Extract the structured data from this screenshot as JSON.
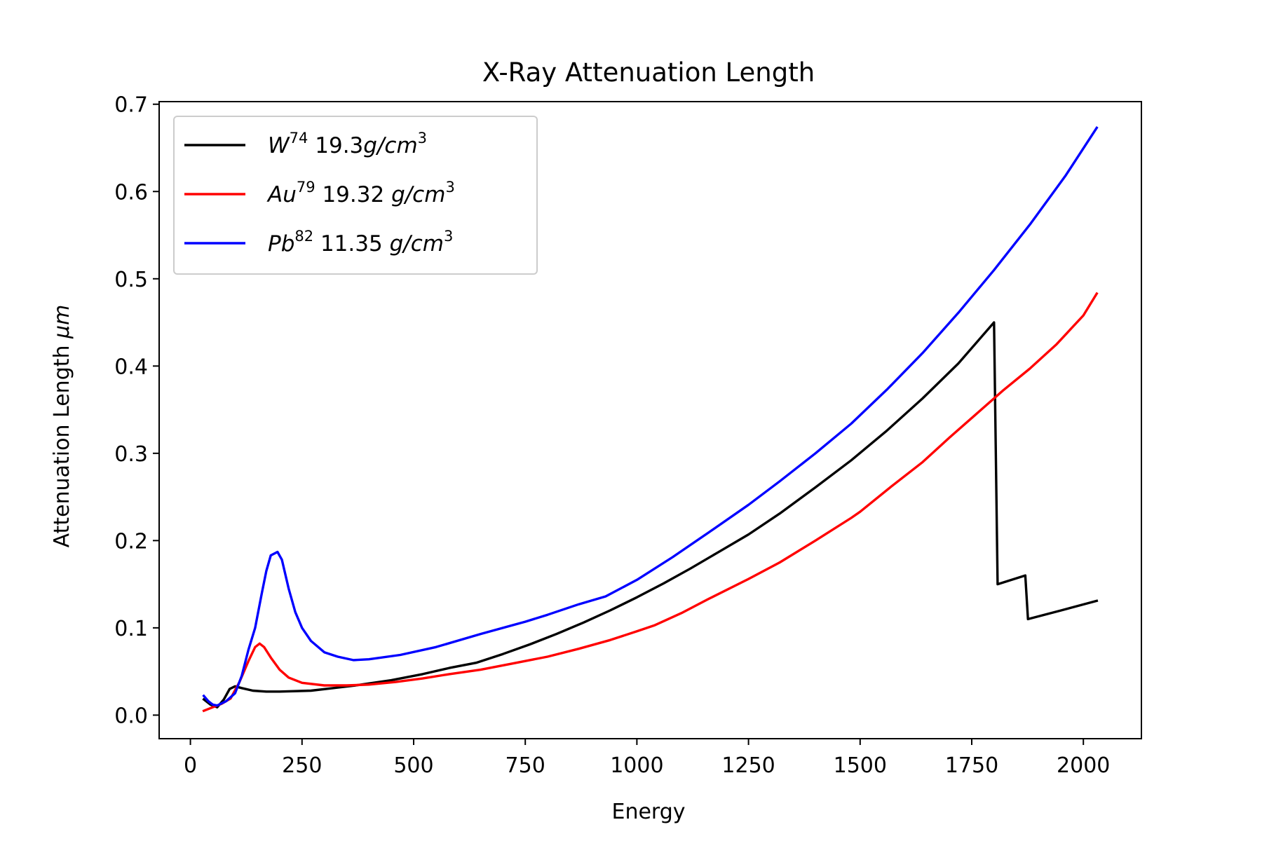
{
  "chart_data": {
    "type": "line",
    "title": "X-Ray Attenuation Length",
    "xlabel": "Energy",
    "ylabel": "Attenuation Length",
    "ylabel_unit": "μm",
    "xlim": [
      -70,
      2130
    ],
    "ylim": [
      -0.027,
      0.703
    ],
    "x_ticks": [
      0,
      250,
      500,
      750,
      1000,
      1250,
      1500,
      1750,
      2000
    ],
    "x_tick_labels": [
      "0",
      "250",
      "500",
      "750",
      "1000",
      "1250",
      "1500",
      "1750",
      "2000"
    ],
    "y_ticks": [
      0.0,
      0.1,
      0.2,
      0.3,
      0.4,
      0.5,
      0.6,
      0.7
    ],
    "y_tick_labels": [
      "0.0",
      "0.1",
      "0.2",
      "0.3",
      "0.4",
      "0.5",
      "0.6",
      "0.7"
    ],
    "grid": false,
    "legend_position": "top-left",
    "series": [
      {
        "name": "W74 19.3g/cm3",
        "legend": {
          "symbol": "W",
          "z": "74",
          "density": "19.3",
          "unit_base": "g/cm",
          "unit_exp": "3",
          "space": false
        },
        "color": "#000000",
        "points": [
          [
            30,
            0.018
          ],
          [
            45,
            0.012
          ],
          [
            60,
            0.009
          ],
          [
            75,
            0.018
          ],
          [
            88,
            0.03
          ],
          [
            100,
            0.033
          ],
          [
            115,
            0.031
          ],
          [
            140,
            0.028
          ],
          [
            170,
            0.027
          ],
          [
            200,
            0.027
          ],
          [
            270,
            0.028
          ],
          [
            320,
            0.031
          ],
          [
            370,
            0.034
          ],
          [
            450,
            0.04
          ],
          [
            520,
            0.047
          ],
          [
            580,
            0.054
          ],
          [
            640,
            0.06
          ],
          [
            700,
            0.07
          ],
          [
            760,
            0.081
          ],
          [
            820,
            0.093
          ],
          [
            880,
            0.106
          ],
          [
            940,
            0.12
          ],
          [
            1000,
            0.135
          ],
          [
            1060,
            0.151
          ],
          [
            1120,
            0.168
          ],
          [
            1180,
            0.186
          ],
          [
            1250,
            0.207
          ],
          [
            1320,
            0.231
          ],
          [
            1400,
            0.261
          ],
          [
            1480,
            0.292
          ],
          [
            1560,
            0.326
          ],
          [
            1640,
            0.363
          ],
          [
            1720,
            0.403
          ],
          [
            1800,
            0.45
          ],
          [
            1808,
            0.15
          ],
          [
            1870,
            0.16
          ],
          [
            1876,
            0.11
          ],
          [
            1950,
            0.12
          ],
          [
            2030,
            0.131
          ]
        ]
      },
      {
        "name": "Au79 19.32 g/cm3",
        "legend": {
          "symbol": "Au",
          "z": "79",
          "density": "19.32",
          "unit_base": "g/cm",
          "unit_exp": "3",
          "space": true
        },
        "color": "#ff0000",
        "points": [
          [
            30,
            0.005
          ],
          [
            50,
            0.009
          ],
          [
            70,
            0.013
          ],
          [
            90,
            0.019
          ],
          [
            110,
            0.038
          ],
          [
            130,
            0.062
          ],
          [
            145,
            0.078
          ],
          [
            155,
            0.082
          ],
          [
            165,
            0.078
          ],
          [
            180,
            0.066
          ],
          [
            200,
            0.052
          ],
          [
            220,
            0.043
          ],
          [
            250,
            0.037
          ],
          [
            300,
            0.034
          ],
          [
            350,
            0.034
          ],
          [
            400,
            0.035
          ],
          [
            460,
            0.038
          ],
          [
            520,
            0.042
          ],
          [
            580,
            0.047
          ],
          [
            650,
            0.052
          ],
          [
            720,
            0.059
          ],
          [
            800,
            0.067
          ],
          [
            870,
            0.076
          ],
          [
            940,
            0.086
          ],
          [
            1000,
            0.096
          ],
          [
            1040,
            0.103
          ],
          [
            1100,
            0.117
          ],
          [
            1160,
            0.133
          ],
          [
            1250,
            0.156
          ],
          [
            1320,
            0.175
          ],
          [
            1400,
            0.2
          ],
          [
            1480,
            0.226
          ],
          [
            1500,
            0.233
          ],
          [
            1570,
            0.262
          ],
          [
            1640,
            0.29
          ],
          [
            1700,
            0.318
          ],
          [
            1760,
            0.345
          ],
          [
            1820,
            0.372
          ],
          [
            1880,
            0.397
          ],
          [
            1940,
            0.425
          ],
          [
            2000,
            0.458
          ],
          [
            2030,
            0.483
          ]
        ]
      },
      {
        "name": "Pb82 11.35 g/cm3",
        "legend": {
          "symbol": "Pb",
          "z": "82",
          "density": "11.35",
          "unit_base": "g/cm",
          "unit_exp": "3",
          "space": true
        },
        "color": "#0000ff",
        "points": [
          [
            30,
            0.022
          ],
          [
            40,
            0.016
          ],
          [
            50,
            0.012
          ],
          [
            60,
            0.011
          ],
          [
            80,
            0.016
          ],
          [
            100,
            0.025
          ],
          [
            115,
            0.045
          ],
          [
            130,
            0.075
          ],
          [
            145,
            0.1
          ],
          [
            160,
            0.14
          ],
          [
            170,
            0.165
          ],
          [
            180,
            0.183
          ],
          [
            195,
            0.187
          ],
          [
            205,
            0.178
          ],
          [
            220,
            0.145
          ],
          [
            235,
            0.118
          ],
          [
            250,
            0.1
          ],
          [
            270,
            0.085
          ],
          [
            300,
            0.072
          ],
          [
            330,
            0.067
          ],
          [
            365,
            0.063
          ],
          [
            400,
            0.064
          ],
          [
            470,
            0.069
          ],
          [
            550,
            0.078
          ],
          [
            650,
            0.093
          ],
          [
            750,
            0.107
          ],
          [
            800,
            0.115
          ],
          [
            870,
            0.127
          ],
          [
            930,
            0.136
          ],
          [
            1000,
            0.155
          ],
          [
            1080,
            0.181
          ],
          [
            1160,
            0.209
          ],
          [
            1250,
            0.241
          ],
          [
            1320,
            0.268
          ],
          [
            1400,
            0.3
          ],
          [
            1480,
            0.334
          ],
          [
            1560,
            0.373
          ],
          [
            1640,
            0.415
          ],
          [
            1720,
            0.461
          ],
          [
            1800,
            0.51
          ],
          [
            1880,
            0.562
          ],
          [
            1960,
            0.618
          ],
          [
            2030,
            0.673
          ]
        ]
      }
    ]
  }
}
